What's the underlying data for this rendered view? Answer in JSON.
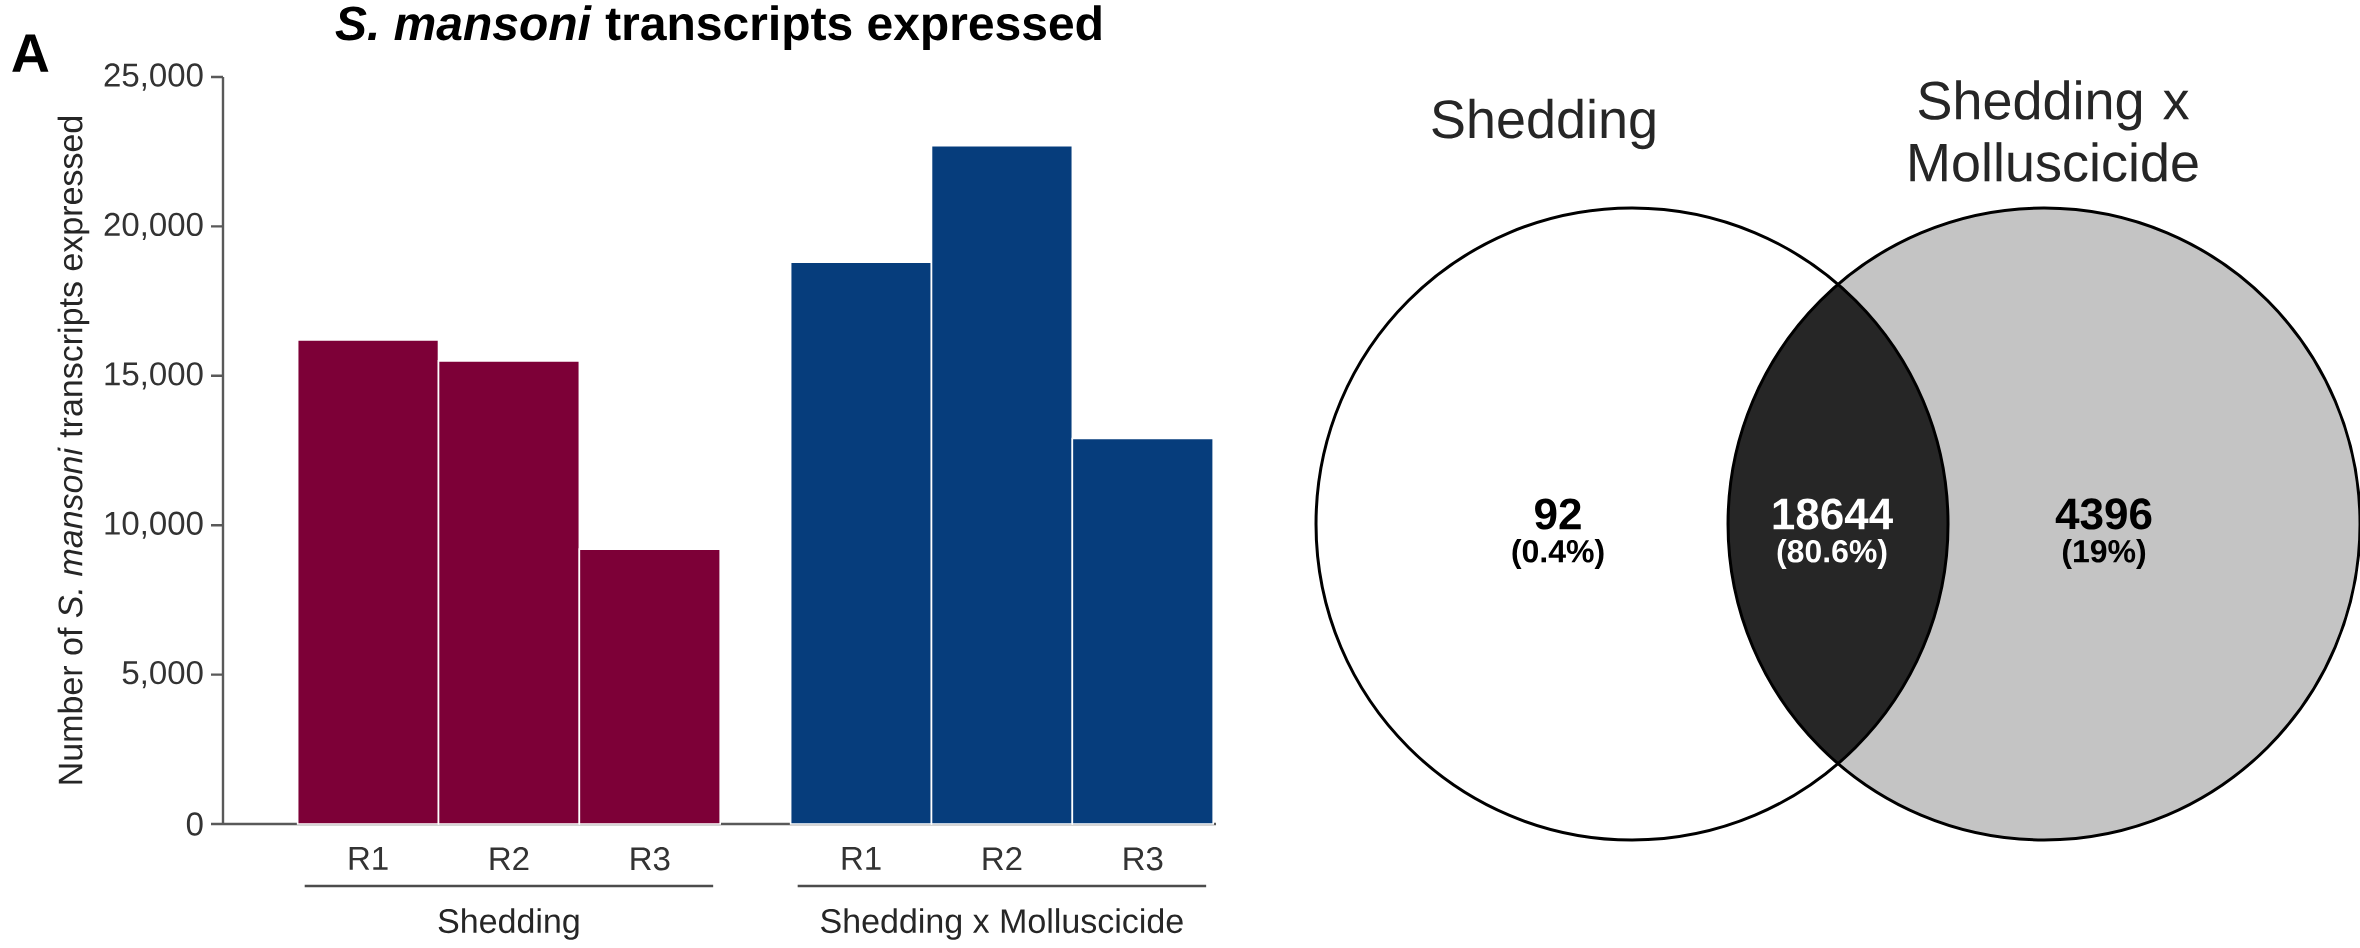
{
  "chart_data": [
    {
      "type": "bar",
      "title": "*S. mansoni* transcripts expressed",
      "ylabel": "Number of *S. mansoni* transcripts expressed",
      "categories": [
        "R1",
        "R2",
        "R3",
        "R1",
        "R2",
        "R3"
      ],
      "series": [
        {
          "name": "Shedding",
          "color": "#7d0037",
          "values": [
            16200,
            15500,
            9200,
            null,
            null,
            null
          ]
        },
        {
          "name": "Shedding x Molluscicide",
          "color": "#063d7c",
          "values": [
            null,
            null,
            null,
            18800,
            22700,
            12900
          ]
        }
      ],
      "ylim": [
        0,
        25000
      ],
      "yticks": [
        0,
        {
          "value": 5000,
          "label": "5,000"
        },
        {
          "value": 10000,
          "label": "10,000"
        },
        {
          "value": 15000,
          "label": "15,000"
        },
        {
          "value": 20000,
          "label": "20,000"
        },
        {
          "value": 25000,
          "label": "25,000"
        }
      ],
      "annotations": [
        "A"
      ]
    },
    {
      "type": "other",
      "categories": [
        "Shedding",
        "Shedding x Molluscicide"
      ],
      "colors": [
        "#ffffff",
        "#c4c4c4",
        "#262626"
      ],
      "annotations": [
        "92",
        "(0.4%)",
        "18644",
        "(80.6%)",
        "4396",
        "(19%)"
      ]
    }
  ]
}
